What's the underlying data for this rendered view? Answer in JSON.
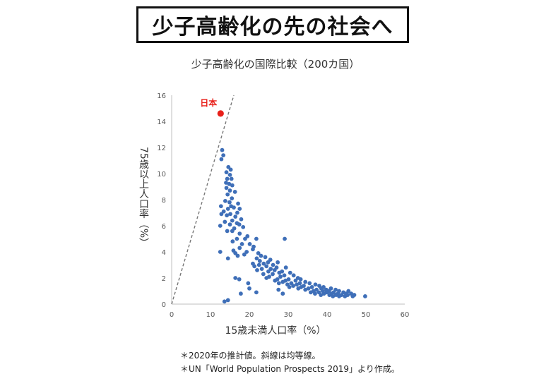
{
  "banner": {
    "text": "少子高齢化の先の社会へ"
  },
  "chart_data": {
    "type": "scatter",
    "title": "少子高齢化の国際比較（200カ国）",
    "xlabel": "15歳未満人口率（%）",
    "ylabel": "75歳以上人口率（%）",
    "xlim": [
      0,
      60
    ],
    "ylim": [
      0,
      16
    ],
    "xticks": [
      "0",
      "10",
      "20",
      "30",
      "40",
      "50",
      "60"
    ],
    "yticks": [
      "0",
      "2",
      "4",
      "6",
      "8",
      "10",
      "12",
      "14",
      "16"
    ],
    "grid": false,
    "highlight": {
      "label": "日本",
      "x": 12.6,
      "y": 14.6,
      "color": "#e8201a"
    },
    "reference_line": {
      "style": "dashed",
      "color": "#777777",
      "from": [
        0,
        0
      ],
      "to": [
        16,
        16
      ]
    },
    "point_color": "#3f6fb8",
    "points": [
      [
        13.0,
        11.8
      ],
      [
        13.3,
        11.4
      ],
      [
        12.8,
        11.1
      ],
      [
        14.6,
        10.5
      ],
      [
        15.2,
        10.3
      ],
      [
        14.1,
        10.1
      ],
      [
        15.0,
        9.9
      ],
      [
        14.3,
        9.6
      ],
      [
        15.4,
        9.6
      ],
      [
        14.0,
        9.3
      ],
      [
        14.8,
        9.2
      ],
      [
        15.6,
        9.1
      ],
      [
        14.1,
        8.9
      ],
      [
        15.0,
        8.7
      ],
      [
        16.3,
        8.6
      ],
      [
        14.4,
        8.4
      ],
      [
        15.5,
        8.1
      ],
      [
        13.8,
        7.9
      ],
      [
        14.9,
        7.8
      ],
      [
        17.1,
        7.7
      ],
      [
        12.7,
        7.5
      ],
      [
        15.3,
        7.5
      ],
      [
        16.0,
        7.4
      ],
      [
        14.5,
        7.3
      ],
      [
        17.5,
        7.3
      ],
      [
        13.4,
        7.1
      ],
      [
        16.9,
        7.0
      ],
      [
        15.1,
        6.9
      ],
      [
        12.8,
        6.9
      ],
      [
        14.2,
        6.8
      ],
      [
        16.4,
        6.7
      ],
      [
        17.9,
        6.5
      ],
      [
        15.6,
        6.4
      ],
      [
        13.7,
        6.3
      ],
      [
        16.8,
        6.2
      ],
      [
        15.0,
        6.1
      ],
      [
        17.4,
        6.1
      ],
      [
        12.5,
        6.0
      ],
      [
        18.4,
        5.9
      ],
      [
        16.1,
        5.8
      ],
      [
        15.6,
        5.6
      ],
      [
        14.3,
        5.6
      ],
      [
        17.5,
        5.4
      ],
      [
        19.5,
        5.2
      ],
      [
        16.8,
        5.0
      ],
      [
        18.9,
        5.0
      ],
      [
        21.8,
        5.0
      ],
      [
        15.7,
        4.8
      ],
      [
        18.1,
        4.6
      ],
      [
        20.1,
        4.6
      ],
      [
        17.5,
        4.3
      ],
      [
        21.1,
        4.4
      ],
      [
        20.9,
        4.2
      ],
      [
        15.9,
        4.1
      ],
      [
        12.5,
        4.0
      ],
      [
        19.3,
        4.0
      ],
      [
        16.4,
        3.9
      ],
      [
        22.3,
        3.9
      ],
      [
        18.7,
        3.8
      ],
      [
        17.0,
        3.7
      ],
      [
        23.0,
        3.7
      ],
      [
        24.1,
        3.6
      ],
      [
        14.5,
        3.5
      ],
      [
        21.9,
        3.5
      ],
      [
        25.4,
        3.4
      ],
      [
        22.7,
        3.3
      ],
      [
        24.8,
        3.2
      ],
      [
        27.3,
        3.2
      ],
      [
        20.9,
        3.1
      ],
      [
        23.7,
        3.1
      ],
      [
        26.1,
        3.0
      ],
      [
        22.5,
        3.0
      ],
      [
        21.3,
        2.9
      ],
      [
        24.4,
        2.9
      ],
      [
        27.0,
        2.8
      ],
      [
        29.4,
        2.8
      ],
      [
        23.2,
        2.7
      ],
      [
        25.5,
        2.7
      ],
      [
        22.0,
        2.6
      ],
      [
        26.5,
        2.6
      ],
      [
        28.4,
        2.5
      ],
      [
        24.9,
        2.5
      ],
      [
        27.7,
        2.4
      ],
      [
        30.5,
        2.4
      ],
      [
        23.6,
        2.3
      ],
      [
        26.0,
        2.3
      ],
      [
        29.0,
        2.2
      ],
      [
        31.4,
        2.2
      ],
      [
        25.1,
        2.1
      ],
      [
        28.0,
        2.1
      ],
      [
        32.5,
        2.0
      ],
      [
        24.4,
        2.0
      ],
      [
        27.2,
        1.9
      ],
      [
        30.1,
        1.9
      ],
      [
        33.2,
        1.9
      ],
      [
        26.6,
        1.8
      ],
      [
        29.3,
        1.8
      ],
      [
        31.9,
        1.8
      ],
      [
        28.6,
        1.7
      ],
      [
        34.4,
        1.7
      ],
      [
        30.8,
        1.6
      ],
      [
        27.6,
        1.6
      ],
      [
        33.0,
        1.6
      ],
      [
        35.5,
        1.6
      ],
      [
        29.8,
        1.5
      ],
      [
        32.2,
        1.5
      ],
      [
        37.0,
        1.5
      ],
      [
        31.3,
        1.4
      ],
      [
        34.0,
        1.4
      ],
      [
        38.0,
        1.4
      ],
      [
        30.3,
        1.3
      ],
      [
        33.3,
        1.3
      ],
      [
        36.1,
        1.3
      ],
      [
        39.1,
        1.3
      ],
      [
        32.6,
        1.2
      ],
      [
        35.2,
        1.2
      ],
      [
        38.5,
        1.2
      ],
      [
        41.0,
        1.2
      ],
      [
        34.4,
        1.1
      ],
      [
        37.3,
        1.1
      ],
      [
        39.8,
        1.1
      ],
      [
        42.2,
        1.1
      ],
      [
        36.5,
        1.0
      ],
      [
        38.9,
        1.0
      ],
      [
        40.5,
        1.0
      ],
      [
        43.1,
        1.0
      ],
      [
        35.8,
        0.9
      ],
      [
        37.9,
        0.9
      ],
      [
        39.9,
        0.9
      ],
      [
        41.7,
        0.9
      ],
      [
        44.2,
        0.9
      ],
      [
        36.9,
        0.8
      ],
      [
        39.2,
        0.8
      ],
      [
        41.2,
        0.8
      ],
      [
        42.8,
        0.8
      ],
      [
        44.9,
        0.8
      ],
      [
        46.2,
        0.8
      ],
      [
        38.4,
        0.7
      ],
      [
        40.6,
        0.7
      ],
      [
        42.3,
        0.7
      ],
      [
        43.7,
        0.7
      ],
      [
        45.3,
        0.7
      ],
      [
        47.0,
        0.7
      ],
      [
        41.5,
        0.6
      ],
      [
        44.6,
        0.6
      ],
      [
        46.6,
        0.6
      ],
      [
        43.1,
        0.6
      ],
      [
        49.8,
        0.6
      ],
      [
        17.8,
        0.8
      ],
      [
        20.0,
        1.2
      ],
      [
        21.8,
        0.9
      ],
      [
        19.7,
        1.6
      ],
      [
        27.5,
        1.1
      ],
      [
        28.6,
        0.8
      ],
      [
        17.4,
        1.9
      ],
      [
        14.5,
        0.3
      ],
      [
        13.6,
        0.2
      ],
      [
        16.4,
        2.0
      ],
      [
        29.1,
        5.0
      ],
      [
        45.5,
        1.0
      ]
    ]
  },
  "notes": [
    "＊2020年の推計値。斜線は均等線。",
    "＊UN「World Population Prospects 2019」より作成。"
  ]
}
